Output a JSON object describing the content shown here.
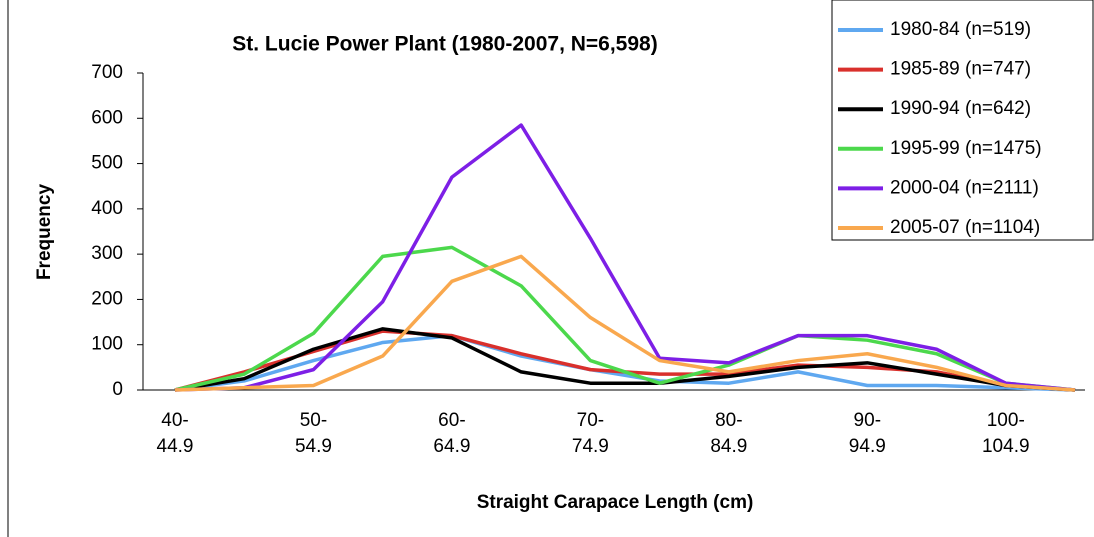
{
  "chart_data": {
    "type": "line",
    "title": "St. Lucie Power Plant (1980-2007, N=6,598)",
    "x_label": "Straight Carapace Length (cm)",
    "y_label": "Frequency",
    "categories": [
      "40-44.9",
      null,
      "50-54.9",
      null,
      "60-64.9",
      null,
      "70-74.9",
      null,
      "80-84.9",
      null,
      "90-94.9",
      null,
      "100-104.9",
      null
    ],
    "ylim": [
      0,
      700
    ],
    "yticks": [
      0,
      100,
      200,
      300,
      400,
      500,
      600,
      700
    ],
    "grid": false,
    "legend": "top-right",
    "series": [
      {
        "name": "1980-84 (n=519)",
        "color": "#5fa8f0",
        "values": [
          0,
          20,
          65,
          105,
          120,
          75,
          45,
          20,
          15,
          40,
          10,
          10,
          5,
          0
        ]
      },
      {
        "name": "1985-89 (n=747)",
        "color": "#d9302c",
        "values": [
          0,
          40,
          85,
          130,
          120,
          80,
          45,
          35,
          35,
          55,
          50,
          40,
          10,
          0
        ]
      },
      {
        "name": "1990-94 (n=642)",
        "color": "#000000",
        "values": [
          0,
          25,
          90,
          135,
          115,
          40,
          15,
          15,
          30,
          50,
          60,
          35,
          10,
          0
        ]
      },
      {
        "name": "1995-99 (n=1475)",
        "color": "#4cd84c",
        "values": [
          0,
          35,
          125,
          295,
          315,
          230,
          65,
          15,
          55,
          120,
          110,
          80,
          15,
          0
        ]
      },
      {
        "name": "2000-04 (n=2111)",
        "color": "#7d1fe6",
        "values": [
          0,
          5,
          45,
          195,
          470,
          585,
          335,
          70,
          60,
          120,
          120,
          90,
          15,
          0
        ]
      },
      {
        "name": "2005-07 (n=1104)",
        "color": "#f9a84e",
        "values": [
          0,
          5,
          10,
          75,
          240,
          295,
          160,
          65,
          40,
          65,
          80,
          50,
          10,
          0
        ]
      }
    ]
  }
}
